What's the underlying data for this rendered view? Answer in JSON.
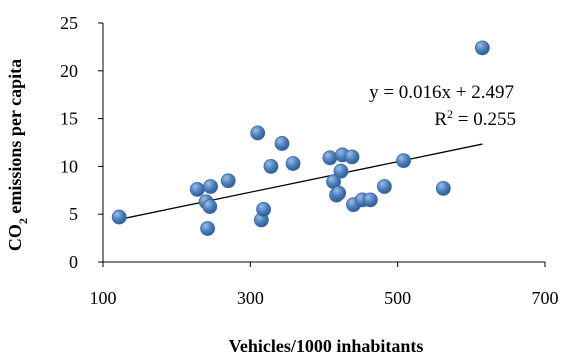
{
  "chart_data": {
    "type": "scatter",
    "title": "",
    "xlabel": "Vehicles/1000 inhabitants",
    "ylabel": {
      "prefix": "CO",
      "sub": "2",
      "suffix": " emissions per capita"
    },
    "xlim": [
      100,
      700
    ],
    "ylim": [
      0,
      25
    ],
    "xticks": [
      100,
      300,
      500,
      700
    ],
    "yticks": [
      0,
      5,
      10,
      15,
      20,
      25
    ],
    "grid": false,
    "legend": "none",
    "marker_color": "#4f81bd",
    "trendline": {
      "slope": 0.016,
      "intercept": 2.497,
      "x_range": [
        122,
        615
      ],
      "color": "#000000"
    },
    "annotations": {
      "equation": "y = 0.016x + 2.497",
      "r2_prefix": "R",
      "r2_sup": "2",
      "r2_suffix": " = 0.255"
    },
    "points": [
      {
        "x": 122,
        "y": 4.7
      },
      {
        "x": 228,
        "y": 7.6
      },
      {
        "x": 240,
        "y": 6.3
      },
      {
        "x": 242,
        "y": 3.5
      },
      {
        "x": 245,
        "y": 5.8
      },
      {
        "x": 246,
        "y": 7.9
      },
      {
        "x": 270,
        "y": 8.5
      },
      {
        "x": 310,
        "y": 13.5
      },
      {
        "x": 315,
        "y": 4.4
      },
      {
        "x": 318,
        "y": 5.5
      },
      {
        "x": 328,
        "y": 10.0
      },
      {
        "x": 343,
        "y": 12.4
      },
      {
        "x": 358,
        "y": 10.3
      },
      {
        "x": 408,
        "y": 10.9
      },
      {
        "x": 413,
        "y": 8.4
      },
      {
        "x": 417,
        "y": 7.0
      },
      {
        "x": 420,
        "y": 7.2
      },
      {
        "x": 423,
        "y": 9.5
      },
      {
        "x": 425,
        "y": 11.2
      },
      {
        "x": 438,
        "y": 11.0
      },
      {
        "x": 440,
        "y": 6.0
      },
      {
        "x": 452,
        "y": 6.5
      },
      {
        "x": 463,
        "y": 6.5
      },
      {
        "x": 482,
        "y": 7.9
      },
      {
        "x": 508,
        "y": 10.6
      },
      {
        "x": 562,
        "y": 7.7
      },
      {
        "x": 615,
        "y": 22.4
      }
    ]
  }
}
